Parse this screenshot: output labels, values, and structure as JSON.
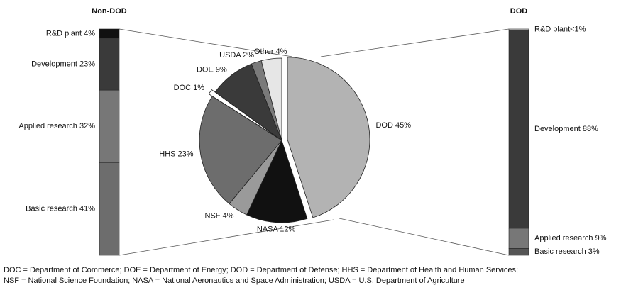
{
  "chart_data": [
    {
      "type": "pie",
      "categories": [
        "DOD",
        "NASA",
        "NSF",
        "HHS",
        "DOC",
        "DOE",
        "USDA",
        "Other"
      ],
      "values": [
        45,
        12,
        4,
        23,
        1,
        9,
        2,
        4
      ],
      "value_labels": [
        "DOD 45%",
        "NASA 12%",
        "NSF 4%",
        "HHS 23%",
        "DOC 1%",
        "DOE 9%",
        "USDA 2%",
        "Other 4%"
      ],
      "colors": [
        "#b3b3b3",
        "#111111",
        "#9a9a9a",
        "#6d6d6d",
        "#ffffff",
        "#3a3a3a",
        "#7a7a7a",
        "#e6e6e6"
      ],
      "explode": [
        0.07,
        0,
        0,
        0,
        0.05,
        0,
        0,
        0
      ],
      "notes": [
        "DOC = Department of Commerce; DOE = Department of Energy; DOD = Department of Defense; HHS = Department of Health and Human Services;",
        "NSF = National Science Foundation; NASA = National Aeronautics and Space Administration; USDA = U.S. Department of Agriculture"
      ]
    },
    {
      "type": "stacked_bar",
      "title": "Non-DOD",
      "categories": [
        "Basic research",
        "Applied research",
        "Development",
        "R&D plant"
      ],
      "values": [
        41,
        32,
        23,
        4
      ],
      "value_labels": [
        "Basic research 41%",
        "Applied research 32%",
        "Development 23%",
        "R&D plant 4%"
      ],
      "colors": [
        "#6d6d6d",
        "#777777",
        "#3a3a3a",
        "#111111"
      ],
      "label_side": "left"
    },
    {
      "type": "stacked_bar",
      "title": "DOD",
      "categories": [
        "Basic research",
        "Applied research",
        "Development",
        "R&D plant"
      ],
      "values": [
        3,
        9,
        88,
        0.5
      ],
      "value_labels": [
        "Basic research 3%",
        "Applied research 9%",
        "Development 88%",
        "R&D plant<1%"
      ],
      "colors": [
        "#555555",
        "#777777",
        "#3a3a3a",
        "#d0d0d0"
      ],
      "label_side": "right"
    }
  ]
}
